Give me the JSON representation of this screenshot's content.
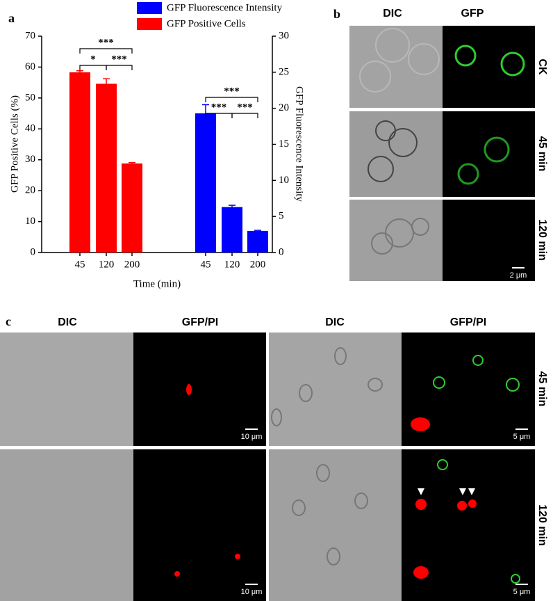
{
  "chart_data": {
    "type": "bar",
    "panel_label": "a",
    "x_label": "Time (min)",
    "y_label": "GFP Positive Cells (%)",
    "y2_label": "GFP Fluorescence Intensity",
    "categories": [
      "45",
      "120",
      "200",
      "45",
      "120",
      "200"
    ],
    "series": [
      {
        "name": "GFP Fluorescence Intensity",
        "color": "#0000ff",
        "axis": "y2",
        "values": [
          null,
          null,
          null,
          19.3,
          6.3,
          3.0
        ],
        "errors": [
          null,
          null,
          null,
          1.2,
          0.25,
          0.08
        ]
      },
      {
        "name": "GFP Positive Cells",
        "color": "#ff0000",
        "values": [
          58.3,
          54.6,
          28.8,
          null,
          null,
          null
        ],
        "errors": [
          0.5,
          1.6,
          0.3,
          null,
          null,
          null
        ]
      }
    ],
    "annotations": [
      "***",
      "*",
      "***",
      "***",
      "***",
      "***"
    ],
    "ylim": [
      0,
      70
    ],
    "yticks": [
      0,
      10,
      20,
      30,
      40,
      50,
      60,
      70
    ],
    "y2lim": [
      0,
      30
    ],
    "y2ticks": [
      0,
      5,
      10,
      15,
      20,
      25,
      30
    ]
  },
  "panel_b": {
    "label": "b",
    "columns": [
      "DIC",
      "GFP"
    ],
    "rows": [
      "CK",
      "45 min",
      "120 min"
    ],
    "scale_bar": "2 μm"
  },
  "panel_c": {
    "label": "c",
    "columns": [
      "DIC",
      "GFP/PI",
      "DIC",
      "GFP/PI"
    ],
    "rows": [
      "45 min",
      "120 min"
    ],
    "scale_bars": [
      "10 μm",
      "5 μm"
    ]
  }
}
